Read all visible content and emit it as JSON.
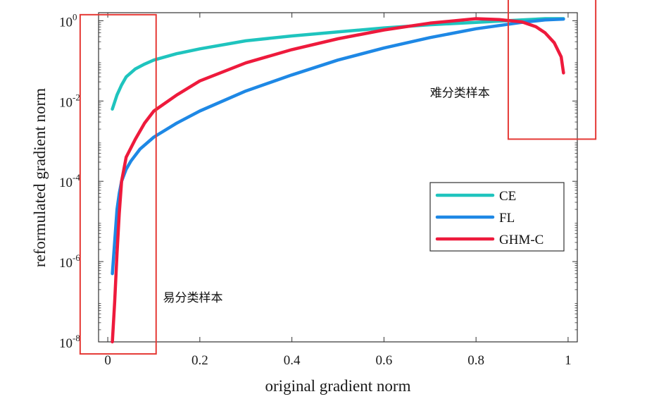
{
  "chart_data": {
    "type": "line",
    "title": "",
    "xlabel": "original gradient norm",
    "ylabel": "reformulated gradient norm",
    "xlim": [
      -0.02,
      1.02
    ],
    "ylim_log10": [
      -8,
      0.2
    ],
    "yscale": "log",
    "x_ticks": [
      0,
      0.2,
      0.4,
      0.6,
      0.8,
      1
    ],
    "x_tick_labels": [
      "0",
      "0.2",
      "0.4",
      "0.6",
      "0.8",
      "1"
    ],
    "y_ticks_log10": [
      -8,
      -6,
      -4,
      -2,
      0
    ],
    "y_tick_labels": [
      {
        "base": "10",
        "exp": "-8"
      },
      {
        "base": "10",
        "exp": "-6"
      },
      {
        "base": "10",
        "exp": "-4"
      },
      {
        "base": "10",
        "exp": "-2"
      },
      {
        "base": "10",
        "exp": "0"
      }
    ],
    "grid": false,
    "legend_placement": "right",
    "series": [
      {
        "name": "CE",
        "color": "#1fc4be",
        "x": [
          0.01,
          0.02,
          0.03,
          0.04,
          0.06,
          0.08,
          0.1,
          0.15,
          0.2,
          0.3,
          0.4,
          0.5,
          0.6,
          0.7,
          0.8,
          0.9,
          0.95,
          0.99
        ],
        "log10_y": [
          -2.2,
          -1.85,
          -1.6,
          -1.4,
          -1.2,
          -1.08,
          -0.98,
          -0.82,
          -0.7,
          -0.5,
          -0.38,
          -0.28,
          -0.18,
          -0.1,
          -0.04,
          0.02,
          0.05,
          0.05
        ]
      },
      {
        "name": "FL",
        "color": "#1e88e5",
        "x": [
          0.01,
          0.015,
          0.02,
          0.025,
          0.03,
          0.04,
          0.05,
          0.07,
          0.1,
          0.15,
          0.2,
          0.3,
          0.4,
          0.5,
          0.6,
          0.7,
          0.8,
          0.9,
          0.95,
          0.99
        ],
        "log10_y": [
          -6.3,
          -5.5,
          -4.7,
          -4.3,
          -4.0,
          -3.7,
          -3.5,
          -3.2,
          -2.9,
          -2.55,
          -2.25,
          -1.75,
          -1.35,
          -0.98,
          -0.68,
          -0.42,
          -0.2,
          -0.04,
          0.02,
          0.04
        ]
      },
      {
        "name": "GHM-C",
        "color": "#ee1a3c",
        "x": [
          0.01,
          0.015,
          0.02,
          0.025,
          0.03,
          0.04,
          0.06,
          0.08,
          0.1,
          0.15,
          0.2,
          0.3,
          0.4,
          0.5,
          0.6,
          0.7,
          0.8,
          0.85,
          0.9,
          0.93,
          0.95,
          0.97,
          0.985,
          0.99
        ],
        "log10_y": [
          -8,
          -7.0,
          -5.8,
          -4.8,
          -4.0,
          -3.4,
          -2.95,
          -2.55,
          -2.25,
          -1.85,
          -1.5,
          -1.05,
          -0.72,
          -0.45,
          -0.23,
          -0.06,
          0.05,
          0.03,
          -0.03,
          -0.15,
          -0.3,
          -0.55,
          -0.9,
          -1.3
        ]
      }
    ],
    "annotations": [
      {
        "text": "易分类样本",
        "x": 0.12,
        "log10_y": -7.0
      },
      {
        "text": "难分类样本",
        "x": 0.7,
        "log10_y": -1.9
      }
    ],
    "highlight_boxes": [
      {
        "label": "easy",
        "color": "#e53935",
        "x_range": [
          -0.06,
          0.105
        ],
        "log10_y_range": [
          -8.3,
          0.15
        ]
      },
      {
        "label": "hard",
        "color": "#e53935",
        "x_range": [
          0.87,
          1.06
        ],
        "log10_y_range": [
          -2.95,
          0.7
        ]
      }
    ]
  }
}
